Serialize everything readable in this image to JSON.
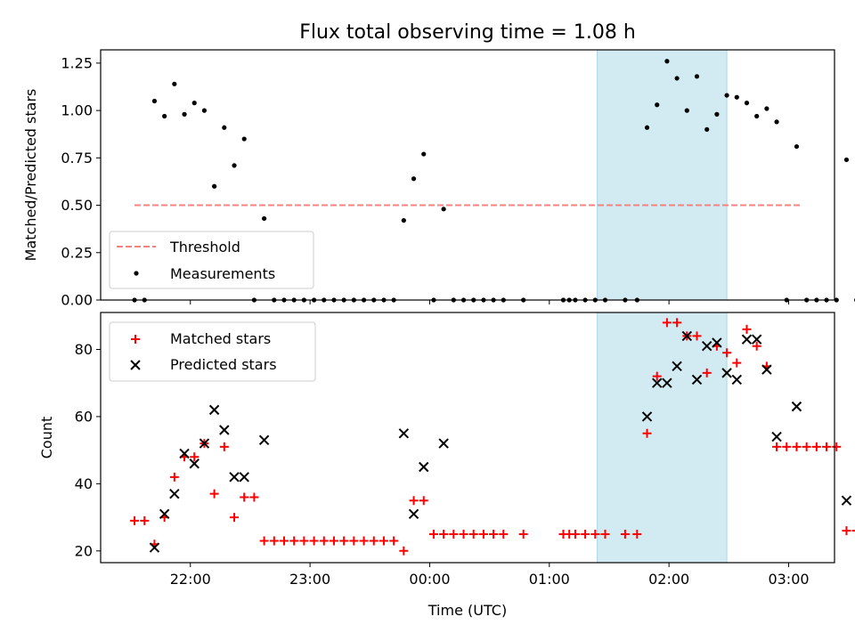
{
  "figure": {
    "title": "Flux total observing time = 1.08 h",
    "xlabel": "Time (UTC)"
  },
  "chart_data": [
    {
      "type": "scatter",
      "ylabel": "Matched/Predicted stars",
      "ylim": [
        0,
        1.32
      ],
      "xlim": [
        "21:15",
        "03:23"
      ],
      "x_ticks": [
        "22:00",
        "23:00",
        "00:00",
        "01:00",
        "02:00",
        "03:00"
      ],
      "y_ticks": [
        0.0,
        0.25,
        0.5,
        0.75,
        1.0,
        1.25
      ],
      "y_tick_labels": [
        "0.00",
        "0.25",
        "0.50",
        "0.75",
        "1.00",
        "1.25"
      ],
      "shaded_interval": {
        "from": "01:24",
        "to": "02:29",
        "color": "#add8e6"
      },
      "threshold": {
        "name": "Threshold",
        "value": 0.5,
        "from": "21:32",
        "to": "03:06",
        "color": "#ff7f7f",
        "style": "dashed"
      },
      "series": [
        {
          "name": "Measurements",
          "color": "#000000",
          "marker": "dot",
          "points": [
            [
              "21:32",
              0.0
            ],
            [
              "21:37",
              0.0
            ],
            [
              "21:42",
              1.05
            ],
            [
              "21:47",
              0.97
            ],
            [
              "21:52",
              1.14
            ],
            [
              "21:57",
              0.98
            ],
            [
              "22:02",
              1.04
            ],
            [
              "22:07",
              1.0
            ],
            [
              "22:12",
              0.6
            ],
            [
              "22:17",
              0.91
            ],
            [
              "22:22",
              0.71
            ],
            [
              "22:27",
              0.85
            ],
            [
              "22:32",
              0.0
            ],
            [
              "22:37",
              0.43
            ],
            [
              "22:42",
              0.0
            ],
            [
              "22:47",
              0.0
            ],
            [
              "22:52",
              0.0
            ],
            [
              "22:57",
              0.0
            ],
            [
              "23:02",
              0.0
            ],
            [
              "23:07",
              0.0
            ],
            [
              "23:12",
              0.0
            ],
            [
              "23:17",
              0.0
            ],
            [
              "23:22",
              0.0
            ],
            [
              "23:27",
              0.0
            ],
            [
              "23:32",
              0.0
            ],
            [
              "23:37",
              0.0
            ],
            [
              "23:42",
              0.0
            ],
            [
              "23:47",
              0.42
            ],
            [
              "23:52",
              0.64
            ],
            [
              "23:57",
              0.77
            ],
            [
              "00:02",
              0.0
            ],
            [
              "00:07",
              0.48
            ],
            [
              "00:12",
              0.0
            ],
            [
              "00:17",
              0.0
            ],
            [
              "00:22",
              0.0
            ],
            [
              "00:27",
              0.0
            ],
            [
              "00:32",
              0.0
            ],
            [
              "00:37",
              0.0
            ],
            [
              "00:47",
              0.0
            ],
            [
              "01:07",
              0.0
            ],
            [
              "01:10",
              0.0
            ],
            [
              "01:13",
              0.0
            ],
            [
              "01:18",
              0.0
            ],
            [
              "01:23",
              0.0
            ],
            [
              "01:28",
              0.0
            ],
            [
              "01:38",
              0.0
            ],
            [
              "01:44",
              0.0
            ],
            [
              "01:49",
              0.91
            ],
            [
              "01:54",
              1.03
            ],
            [
              "01:59",
              1.26
            ],
            [
              "02:04",
              1.17
            ],
            [
              "02:09",
              1.0
            ],
            [
              "02:14",
              1.18
            ],
            [
              "02:19",
              0.9
            ],
            [
              "02:24",
              0.98
            ],
            [
              "02:29",
              1.08
            ],
            [
              "02:34",
              1.07
            ],
            [
              "02:39",
              1.04
            ],
            [
              "02:44",
              0.97
            ],
            [
              "02:49",
              1.01
            ],
            [
              "02:54",
              0.94
            ],
            [
              "02:59",
              0.0
            ],
            [
              "03:04",
              0.81
            ],
            [
              "03:09",
              0.0
            ],
            [
              "03:14",
              0.0
            ],
            [
              "03:19",
              0.0
            ],
            [
              "03:24",
              0.0
            ],
            [
              "03:29",
              0.74
            ],
            [
              "03:34",
              0.0
            ]
          ]
        }
      ],
      "legend": {
        "placement": "lower-left",
        "entries": [
          "Threshold",
          "Measurements"
        ]
      }
    },
    {
      "type": "scatter",
      "ylabel": "Count",
      "ylim": [
        16.5,
        91
      ],
      "xlim": [
        "21:15",
        "03:23"
      ],
      "x_ticks": [
        "22:00",
        "23:00",
        "00:00",
        "01:00",
        "02:00",
        "03:00"
      ],
      "y_ticks": [
        20,
        40,
        60,
        80
      ],
      "y_tick_labels": [
        "20",
        "40",
        "60",
        "80"
      ],
      "shaded_interval": {
        "from": "01:24",
        "to": "02:29",
        "color": "#add8e6"
      },
      "series": [
        {
          "name": "Matched stars",
          "color": "#ff0000",
          "marker": "plus",
          "points": [
            [
              "21:32",
              29
            ],
            [
              "21:37",
              29
            ],
            [
              "21:42",
              22
            ],
            [
              "21:47",
              30
            ],
            [
              "21:52",
              42
            ],
            [
              "21:57",
              48
            ],
            [
              "22:02",
              48
            ],
            [
              "22:07",
              52
            ],
            [
              "22:12",
              37
            ],
            [
              "22:17",
              51
            ],
            [
              "22:22",
              30
            ],
            [
              "22:27",
              36
            ],
            [
              "22:32",
              36
            ],
            [
              "22:37",
              23
            ],
            [
              "22:42",
              23
            ],
            [
              "22:47",
              23
            ],
            [
              "22:52",
              23
            ],
            [
              "22:57",
              23
            ],
            [
              "23:02",
              23
            ],
            [
              "23:07",
              23
            ],
            [
              "23:12",
              23
            ],
            [
              "23:17",
              23
            ],
            [
              "23:22",
              23
            ],
            [
              "23:27",
              23
            ],
            [
              "23:32",
              23
            ],
            [
              "23:37",
              23
            ],
            [
              "23:42",
              23
            ],
            [
              "23:47",
              20
            ],
            [
              "23:52",
              35
            ],
            [
              "23:57",
              35
            ],
            [
              "00:02",
              25
            ],
            [
              "00:07",
              25
            ],
            [
              "00:12",
              25
            ],
            [
              "00:17",
              25
            ],
            [
              "00:22",
              25
            ],
            [
              "00:27",
              25
            ],
            [
              "00:32",
              25
            ],
            [
              "00:37",
              25
            ],
            [
              "00:47",
              25
            ],
            [
              "01:07",
              25
            ],
            [
              "01:10",
              25
            ],
            [
              "01:13",
              25
            ],
            [
              "01:18",
              25
            ],
            [
              "01:23",
              25
            ],
            [
              "01:28",
              25
            ],
            [
              "01:38",
              25
            ],
            [
              "01:44",
              25
            ],
            [
              "01:49",
              55
            ],
            [
              "01:54",
              72
            ],
            [
              "01:59",
              88
            ],
            [
              "02:04",
              88
            ],
            [
              "02:09",
              84
            ],
            [
              "02:14",
              84
            ],
            [
              "02:19",
              73
            ],
            [
              "02:24",
              81
            ],
            [
              "02:29",
              79
            ],
            [
              "02:34",
              76
            ],
            [
              "02:39",
              86
            ],
            [
              "02:44",
              81
            ],
            [
              "02:49",
              75
            ],
            [
              "02:54",
              51
            ],
            [
              "02:59",
              51
            ],
            [
              "03:04",
              51
            ],
            [
              "03:09",
              51
            ],
            [
              "03:14",
              51
            ],
            [
              "03:19",
              51
            ],
            [
              "03:24",
              51
            ],
            [
              "03:29",
              26
            ],
            [
              "03:34",
              26
            ]
          ]
        },
        {
          "name": "Predicted stars",
          "color": "#000000",
          "marker": "x",
          "points": [
            [
              "21:42",
              21
            ],
            [
              "21:47",
              31
            ],
            [
              "21:52",
              37
            ],
            [
              "21:57",
              49
            ],
            [
              "22:02",
              46
            ],
            [
              "22:07",
              52
            ],
            [
              "22:12",
              62
            ],
            [
              "22:17",
              56
            ],
            [
              "22:22",
              42
            ],
            [
              "22:27",
              42
            ],
            [
              "22:37",
              53
            ],
            [
              "23:47",
              55
            ],
            [
              "23:52",
              31
            ],
            [
              "23:57",
              45
            ],
            [
              "00:07",
              52
            ],
            [
              "01:49",
              60
            ],
            [
              "01:54",
              70
            ],
            [
              "01:59",
              70
            ],
            [
              "02:04",
              75
            ],
            [
              "02:09",
              84
            ],
            [
              "02:14",
              71
            ],
            [
              "02:19",
              81
            ],
            [
              "02:24",
              82
            ],
            [
              "02:29",
              73
            ],
            [
              "02:34",
              71
            ],
            [
              "02:39",
              83
            ],
            [
              "02:44",
              83
            ],
            [
              "02:49",
              74
            ],
            [
              "02:54",
              54
            ],
            [
              "03:04",
              63
            ],
            [
              "03:29",
              35
            ]
          ]
        }
      ],
      "legend": {
        "placement": "upper-left",
        "entries": [
          "Matched stars",
          "Predicted stars"
        ]
      }
    }
  ]
}
